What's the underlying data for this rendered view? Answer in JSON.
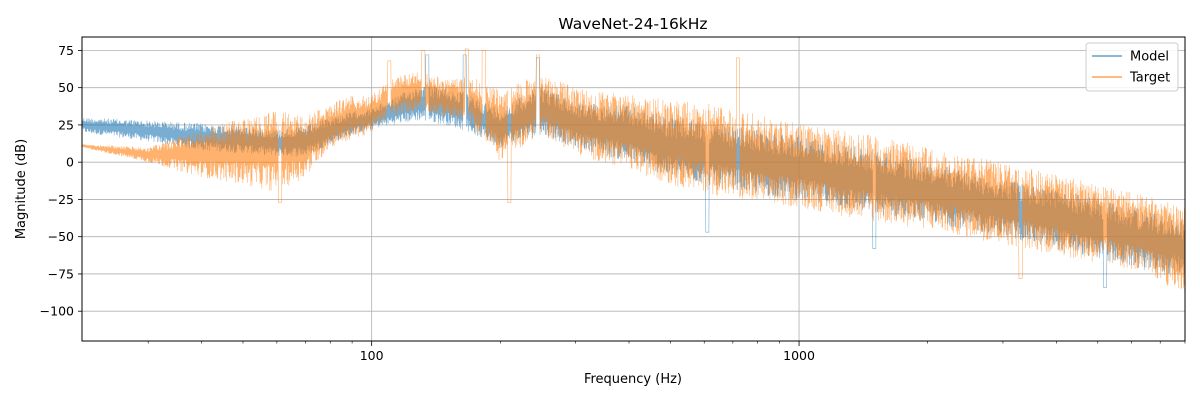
{
  "chart_data": {
    "type": "line",
    "title": "WaveNet-24-16kHz",
    "xlabel": "Frequency (Hz)",
    "ylabel": "Magnitude (dB)",
    "x_scale": "log",
    "xlim": [
      21,
      8000
    ],
    "ylim": [
      -120,
      84
    ],
    "xticks": [
      {
        "value": 100,
        "label": "100"
      },
      {
        "value": 1000,
        "label": "1000"
      }
    ],
    "yticks": [
      {
        "value": 75,
        "label": "75"
      },
      {
        "value": 50,
        "label": "50"
      },
      {
        "value": 25,
        "label": "25"
      },
      {
        "value": 0,
        "label": "0"
      },
      {
        "value": -25,
        "label": "−25"
      },
      {
        "value": -50,
        "label": "−50"
      },
      {
        "value": -75,
        "label": "−75"
      },
      {
        "value": -100,
        "label": "−100"
      }
    ],
    "grid": true,
    "legend_position": "top-right",
    "series": [
      {
        "name": "Model",
        "color": "#1f77b4",
        "envelope": {
          "x": [
            21,
            30,
            40,
            50,
            60,
            70,
            80,
            90,
            100,
            110,
            130,
            150,
            170,
            200,
            250,
            300,
            400,
            500,
            600,
            700,
            800,
            1000,
            1200,
            1500,
            2000,
            3000,
            4000,
            5000,
            6000,
            7000,
            8000
          ],
          "upper": [
            30,
            28,
            26,
            24,
            22,
            24,
            30,
            34,
            36,
            42,
            52,
            50,
            45,
            36,
            52,
            40,
            38,
            30,
            28,
            24,
            22,
            18,
            14,
            8,
            0,
            -12,
            -18,
            -24,
            -30,
            -35,
            -40
          ],
          "lower": [
            20,
            14,
            8,
            6,
            4,
            4,
            12,
            18,
            22,
            25,
            28,
            25,
            20,
            10,
            18,
            10,
            0,
            -10,
            -15,
            -18,
            -22,
            -26,
            -30,
            -35,
            -40,
            -50,
            -58,
            -65,
            -70,
            -75,
            -75
          ]
        },
        "peaks": [
          {
            "x": 135,
            "y": 72
          },
          {
            "x": 165,
            "y": 72
          },
          {
            "x": 245,
            "y": 70
          },
          {
            "x": 610,
            "y": -47
          },
          {
            "x": 1500,
            "y": -58
          },
          {
            "x": 5200,
            "y": -84
          }
        ]
      },
      {
        "name": "Target",
        "color": "#ff7f0e",
        "envelope": {
          "x": [
            21,
            30,
            40,
            50,
            60,
            70,
            80,
            90,
            100,
            110,
            130,
            150,
            170,
            200,
            250,
            300,
            400,
            500,
            600,
            700,
            800,
            1000,
            1200,
            1500,
            2000,
            3000,
            4000,
            5000,
            6000,
            7000,
            8000
          ],
          "upper": [
            12,
            10,
            22,
            30,
            35,
            30,
            40,
            45,
            45,
            55,
            62,
            55,
            58,
            48,
            60,
            50,
            45,
            42,
            40,
            36,
            32,
            26,
            22,
            18,
            10,
            0,
            -8,
            -15,
            -20,
            -25,
            -30
          ],
          "lower": [
            10,
            0,
            -10,
            -15,
            -20,
            -10,
            10,
            15,
            20,
            30,
            35,
            30,
            25,
            0,
            20,
            5,
            -5,
            -15,
            -20,
            -25,
            -28,
            -30,
            -35,
            -40,
            -45,
            -55,
            -62,
            -68,
            -72,
            -80,
            -90
          ]
        },
        "peaks": [
          {
            "x": 110,
            "y": 68
          },
          {
            "x": 132,
            "y": 75
          },
          {
            "x": 167,
            "y": 76
          },
          {
            "x": 183,
            "y": 75
          },
          {
            "x": 245,
            "y": 72
          },
          {
            "x": 720,
            "y": 70
          },
          {
            "x": 61,
            "y": -27
          },
          {
            "x": 210,
            "y": -27
          },
          {
            "x": 3300,
            "y": -78
          }
        ]
      }
    ]
  }
}
